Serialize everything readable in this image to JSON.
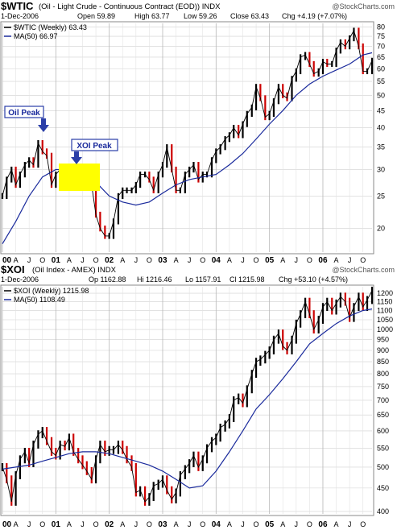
{
  "top": {
    "symbol": "$WTIC",
    "title": "(Oil - Light Crude - Continuous Contract (EOD)) INDX",
    "watermark": "@StockCharts.com",
    "date": "1-Dec-2006",
    "quote": {
      "open": "Open 59.89",
      "high": "High 63.77",
      "low": "Low 59.26",
      "close": "Close 63.43",
      "chg": "Chg +4.19 (+7.07%)"
    },
    "legend_price": "$WTIC (Weekly) 63.43",
    "legend_ma": "MA(50) 66.97",
    "annotations": {
      "oil_peak": "Oil Peak",
      "xoi_peak": "XOI Peak"
    }
  },
  "bottom": {
    "symbol": "$XOI",
    "title": "(Oil Index - AMEX) INDX",
    "watermark": "@StockCharts.com",
    "date": "1-Dec-2006",
    "quote": {
      "open": "Op 1162.88",
      "high": "Hi 1216.46",
      "low": "Lo 1157.91",
      "close": "Cl 1215.98",
      "chg": "Chg +53.10 (+4.57%)"
    },
    "legend_price": "$XOI (Weekly) 1215.98",
    "legend_ma": "MA(50) 1108.49"
  },
  "colors": {
    "price": "#000000",
    "down": "#cc0000",
    "ma": "#1a2a9c",
    "highlight": "#ffff00",
    "highlight_line": "#4040ff",
    "arrow": "#2a3ea8",
    "grid": "#d0d0d0"
  },
  "chart_data": [
    {
      "type": "line",
      "title": "$WTIC (Oil - Light Crude - Continuous Contract (EOD)) INDX",
      "scale": "log",
      "ylim": [
        17,
        82
      ],
      "yticks": [
        20,
        25,
        30,
        35,
        40,
        45,
        50,
        55,
        60,
        65,
        70,
        75,
        80
      ],
      "xlim": [
        2000.0,
        2006.92
      ],
      "x_tick_labels": [
        "00",
        "A",
        "J",
        "O",
        "01",
        "A",
        "J",
        "O",
        "02",
        "A",
        "J",
        "O",
        "03",
        "A",
        "J",
        "O",
        "04",
        "A",
        "J",
        "O",
        "05",
        "A",
        "J",
        "O",
        "06",
        "A",
        "J",
        "O"
      ],
      "series": [
        {
          "name": "$WTIC (Weekly)",
          "x": [
            2000.0,
            2000.08,
            2000.17,
            2000.25,
            2000.33,
            2000.42,
            2000.5,
            2000.58,
            2000.67,
            2000.75,
            2000.83,
            2000.92,
            2001.0,
            2001.08,
            2001.17,
            2001.25,
            2001.33,
            2001.42,
            2001.5,
            2001.58,
            2001.67,
            2001.75,
            2001.83,
            2001.92,
            2002.0,
            2002.08,
            2002.17,
            2002.25,
            2002.33,
            2002.42,
            2002.5,
            2002.58,
            2002.67,
            2002.75,
            2002.83,
            2002.92,
            2003.0,
            2003.08,
            2003.17,
            2003.25,
            2003.33,
            2003.42,
            2003.5,
            2003.58,
            2003.67,
            2003.75,
            2003.83,
            2003.92,
            2004.0,
            2004.08,
            2004.17,
            2004.25,
            2004.33,
            2004.42,
            2004.5,
            2004.58,
            2004.67,
            2004.75,
            2004.83,
            2004.92,
            2005.0,
            2005.08,
            2005.17,
            2005.25,
            2005.33,
            2005.42,
            2005.5,
            2005.58,
            2005.67,
            2005.75,
            2005.83,
            2005.92,
            2006.0,
            2006.08,
            2006.17,
            2006.25,
            2006.33,
            2006.42,
            2006.5,
            2006.58,
            2006.67,
            2006.75,
            2006.83,
            2006.92
          ],
          "values": [
            25,
            28,
            30,
            27,
            29,
            31,
            32,
            31,
            36,
            34,
            33,
            27,
            29,
            30,
            27,
            28,
            28,
            27,
            27,
            28,
            27,
            22,
            20,
            19,
            19,
            21,
            25,
            26,
            26,
            26,
            27,
            29,
            29,
            28,
            26,
            29,
            31,
            35,
            30,
            26,
            26,
            29,
            30,
            31,
            28,
            29,
            29,
            32,
            34,
            35,
            37,
            38,
            40,
            38,
            41,
            44,
            46,
            53,
            49,
            43,
            44,
            48,
            53,
            50,
            49,
            56,
            59,
            65,
            66,
            62,
            58,
            59,
            63,
            62,
            62,
            68,
            72,
            70,
            74,
            78,
            70,
            59,
            59,
            63.43
          ]
        },
        {
          "name": "MA(50)",
          "x": [
            2000.0,
            2000.25,
            2000.5,
            2000.75,
            2001.0,
            2001.25,
            2001.5,
            2001.75,
            2002.0,
            2002.25,
            2002.5,
            2002.75,
            2003.0,
            2003.25,
            2003.5,
            2003.75,
            2004.0,
            2004.25,
            2004.5,
            2004.75,
            2005.0,
            2005.25,
            2005.5,
            2005.75,
            2006.0,
            2006.25,
            2006.5,
            2006.75,
            2006.92
          ],
          "values": [
            18,
            21,
            25,
            28.5,
            30,
            30,
            29,
            27.5,
            25,
            24,
            23.5,
            24,
            25.5,
            27,
            28,
            28.5,
            29,
            31,
            33.5,
            37,
            41,
            45,
            50,
            54,
            57,
            59.5,
            62,
            66,
            66.97
          ]
        }
      ]
    },
    {
      "type": "line",
      "title": "$XOI (Oil Index - AMEX) INDX",
      "scale": "log",
      "ylim": [
        395,
        1240
      ],
      "yticks": [
        400,
        450,
        500,
        550,
        600,
        650,
        700,
        750,
        800,
        850,
        900,
        950,
        1000,
        1050,
        1100,
        1150,
        1200
      ],
      "xlim": [
        2000.0,
        2006.92
      ],
      "x_tick_labels": [
        "00",
        "A",
        "J",
        "O",
        "01",
        "A",
        "J",
        "O",
        "02",
        "A",
        "J",
        "O",
        "03",
        "A",
        "J",
        "O",
        "04",
        "A",
        "J",
        "O",
        "05",
        "A",
        "J",
        "O",
        "06",
        "A",
        "J",
        "O"
      ],
      "series": [
        {
          "name": "$XOI (Weekly)",
          "x": [
            2000.0,
            2000.08,
            2000.17,
            2000.25,
            2000.33,
            2000.42,
            2000.5,
            2000.58,
            2000.67,
            2000.75,
            2000.83,
            2000.92,
            2001.0,
            2001.08,
            2001.17,
            2001.25,
            2001.33,
            2001.42,
            2001.5,
            2001.58,
            2001.67,
            2001.75,
            2001.83,
            2001.92,
            2002.0,
            2002.08,
            2002.17,
            2002.25,
            2002.33,
            2002.42,
            2002.5,
            2002.58,
            2002.67,
            2002.75,
            2002.83,
            2002.92,
            2003.0,
            2003.08,
            2003.17,
            2003.25,
            2003.33,
            2003.42,
            2003.5,
            2003.58,
            2003.67,
            2003.75,
            2003.83,
            2003.92,
            2004.0,
            2004.08,
            2004.17,
            2004.25,
            2004.33,
            2004.42,
            2004.5,
            2004.58,
            2004.67,
            2004.75,
            2004.83,
            2004.92,
            2005.0,
            2005.08,
            2005.17,
            2005.25,
            2005.33,
            2005.42,
            2005.5,
            2005.58,
            2005.67,
            2005.75,
            2005.83,
            2005.92,
            2006.0,
            2006.08,
            2006.17,
            2006.25,
            2006.33,
            2006.42,
            2006.5,
            2006.58,
            2006.67,
            2006.75,
            2006.83,
            2006.92
          ],
          "values": [
            500,
            470,
            420,
            480,
            520,
            540,
            510,
            560,
            590,
            600,
            570,
            540,
            530,
            560,
            555,
            580,
            540,
            520,
            505,
            490,
            470,
            520,
            560,
            540,
            545,
            545,
            560,
            545,
            520,
            500,
            440,
            445,
            420,
            430,
            455,
            460,
            470,
            445,
            425,
            440,
            480,
            495,
            510,
            530,
            500,
            520,
            550,
            570,
            580,
            610,
            620,
            640,
            700,
            710,
            690,
            740,
            800,
            850,
            860,
            880,
            900,
            950,
            980,
            920,
            900,
            950,
            1030,
            1080,
            1150,
            1080,
            1000,
            1050,
            1120,
            1150,
            1100,
            1140,
            1180,
            1150,
            1060,
            1120,
            1180,
            1120,
            1160,
            1215.98
          ]
        },
        {
          "name": "MA(50)",
          "x": [
            2000.0,
            2000.25,
            2000.5,
            2000.75,
            2001.0,
            2001.25,
            2001.5,
            2001.75,
            2002.0,
            2002.25,
            2002.5,
            2002.75,
            2003.0,
            2003.25,
            2003.5,
            2003.75,
            2004.0,
            2004.25,
            2004.5,
            2004.75,
            2005.0,
            2005.25,
            2005.5,
            2005.75,
            2006.0,
            2006.25,
            2006.5,
            2006.75,
            2006.92
          ],
          "values": [
            495,
            500,
            505,
            515,
            525,
            535,
            540,
            540,
            535,
            525,
            515,
            505,
            490,
            470,
            450,
            455,
            490,
            540,
            600,
            670,
            720,
            780,
            850,
            930,
            980,
            1030,
            1070,
            1100,
            1108.49
          ]
        }
      ]
    }
  ]
}
